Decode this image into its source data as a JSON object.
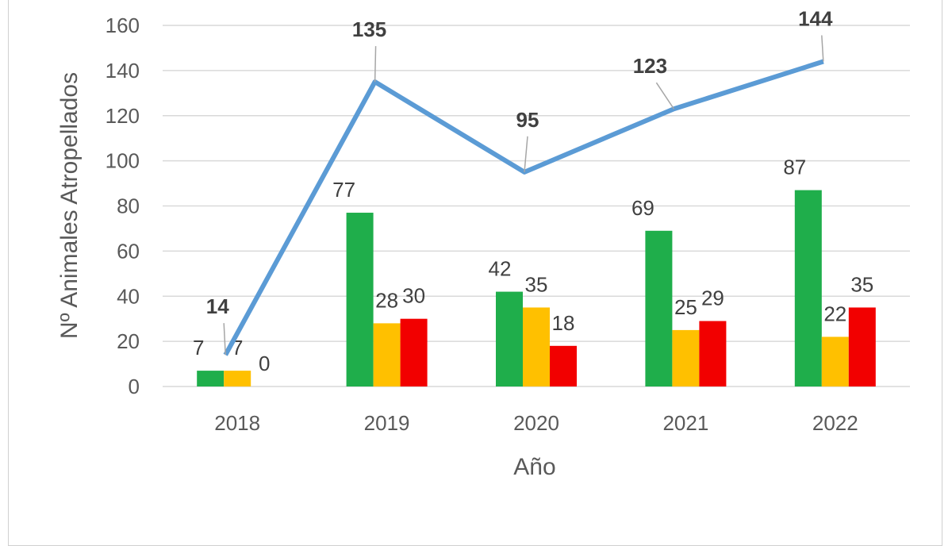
{
  "chart_data": {
    "type": "bar",
    "categories": [
      "2018",
      "2019",
      "2020",
      "2021",
      "2022"
    ],
    "xlabel": "Año",
    "ylabel": "Nº Animales Atropellados",
    "ylim": [
      0,
      160
    ],
    "yticks": [
      0,
      20,
      40,
      60,
      80,
      100,
      120,
      140,
      160
    ],
    "grid": true,
    "series": [
      {
        "type": "bar",
        "values": [
          7,
          77,
          42,
          69,
          87
        ],
        "color": "#1fae4b"
      },
      {
        "type": "bar",
        "values": [
          7,
          28,
          35,
          25,
          22
        ],
        "color": "#ffc000"
      },
      {
        "type": "bar",
        "values": [
          0,
          30,
          18,
          29,
          35
        ],
        "color": "#f20000"
      },
      {
        "type": "line",
        "values": [
          14,
          135,
          95,
          123,
          144
        ],
        "color": "#5b9bd5"
      }
    ],
    "legend": "bottom"
  }
}
